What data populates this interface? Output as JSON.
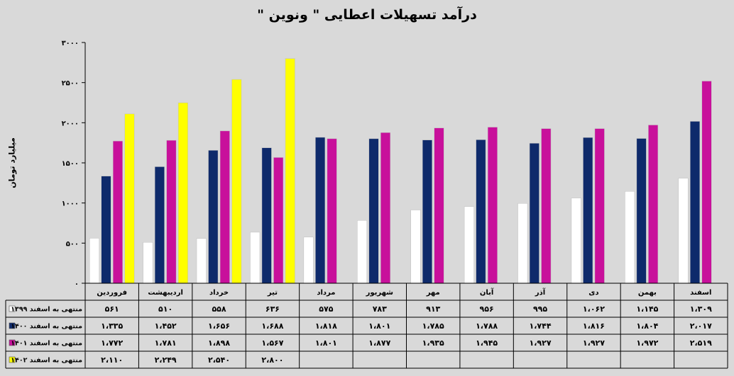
{
  "chart_data": {
    "type": "bar",
    "title": "درآمد تسهیلات اعطایی \" ونوین \"",
    "ylabel": "میلیارد تومان",
    "ylim": [
      0,
      3000
    ],
    "yticks": [
      "۰",
      "۵۰۰",
      "۱۰۰۰",
      "۱۵۰۰",
      "۲۰۰۰",
      "۲۵۰۰",
      "۳۰۰۰"
    ],
    "grid": false,
    "legend_placement": "data-table-left",
    "categories": [
      "فروردین",
      "اردیبهشت",
      "خرداد",
      "تیر",
      "مرداد",
      "شهریور",
      "مهر",
      "آبان",
      "آذر",
      "دی",
      "بهمن",
      "اسفند"
    ],
    "series": [
      {
        "name": "منتهی به اسفند ۱۳۹۹",
        "color": "#ffffff",
        "values": [
          561,
          510,
          558,
          636,
          575,
          783,
          913,
          956,
          995,
          1062,
          1145,
          1309
        ],
        "labels": [
          "۵۶۱",
          "۵۱۰",
          "۵۵۸",
          "۶۳۶",
          "۵۷۵",
          "۷۸۳",
          "۹۱۳",
          "۹۵۶",
          "۹۹۵",
          "۱،۰۶۲",
          "۱،۱۴۵",
          "۱،۳۰۹"
        ]
      },
      {
        "name": "منتهی به اسفند ۱۴۰۰",
        "color": "#0e2a6b",
        "values": [
          1335,
          1452,
          1656,
          1688,
          1818,
          1801,
          1785,
          1788,
          1744,
          1816,
          1804,
          2017
        ],
        "labels": [
          "۱،۳۳۵",
          "۱،۴۵۲",
          "۱،۶۵۶",
          "۱،۶۸۸",
          "۱،۸۱۸",
          "۱،۸۰۱",
          "۱،۷۸۵",
          "۱،۷۸۸",
          "۱،۷۴۴",
          "۱،۸۱۶",
          "۱،۸۰۴",
          "۲،۰۱۷"
        ]
      },
      {
        "name": "منتهی به اسفند ۱۴۰۱",
        "color": "#c8109b",
        "values": [
          1772,
          1781,
          1898,
          1567,
          1801,
          1877,
          1935,
          1945,
          1927,
          1927,
          1972,
          2519
        ],
        "labels": [
          "۱،۷۷۲",
          "۱،۷۸۱",
          "۱،۸۹۸",
          "۱،۵۶۷",
          "۱،۸۰۱",
          "۱،۸۷۷",
          "۱،۹۳۵",
          "۱،۹۴۵",
          "۱،۹۲۷",
          "۱،۹۲۷",
          "۱،۹۷۲",
          "۲،۵۱۹"
        ]
      },
      {
        "name": "منتهی به اسفند ۱۴۰۲",
        "color": "#ffff00",
        "values": [
          2110,
          2249,
          2540,
          2800,
          null,
          null,
          null,
          null,
          null,
          null,
          null,
          null
        ],
        "labels": [
          "۲،۱۱۰",
          "۲،۲۴۹",
          "۲،۵۴۰",
          "۲،۸۰۰",
          "",
          "",
          "",
          "",
          "",
          "",
          "",
          ""
        ]
      }
    ]
  }
}
